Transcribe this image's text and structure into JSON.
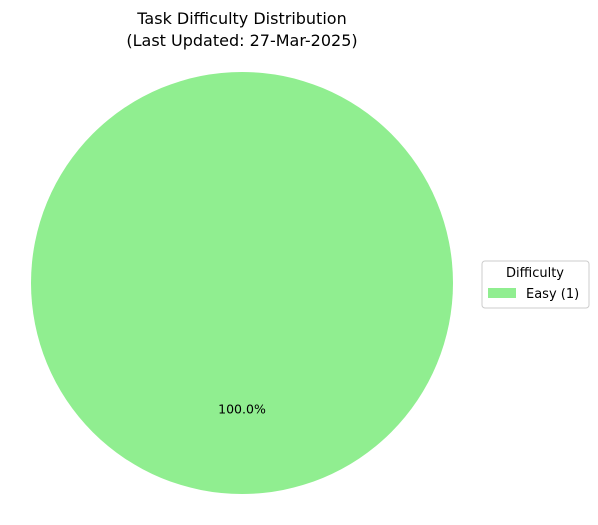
{
  "chart_data": {
    "type": "pie",
    "title": "Task Difficulty Distribution",
    "subtitle": "(Last Updated: 27-Mar-2025)",
    "slices": [
      {
        "label": "Easy (1)",
        "value": 1,
        "percent_label": "100.0%",
        "color": "#90ee90"
      }
    ],
    "legend": {
      "title": "Difficulty",
      "placement": "right"
    }
  }
}
